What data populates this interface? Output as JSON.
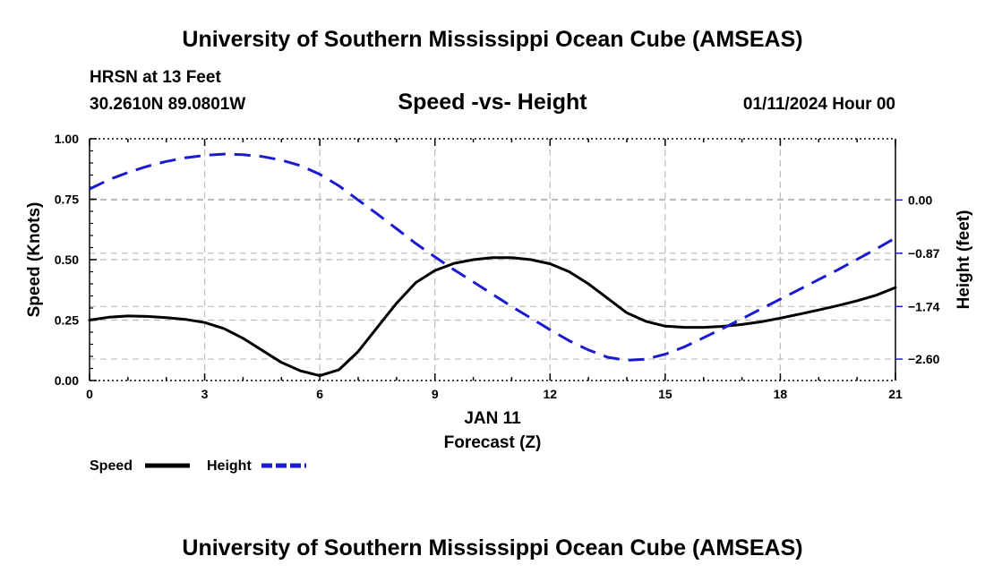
{
  "header": {
    "title": "University of Southern Mississippi Ocean Cube (AMSEAS)",
    "station": "HRSN at 13 Feet",
    "coords": "30.2610N  89.0801W",
    "chart_title": "Speed -vs- Height",
    "date": "01/11/2024 Hour 00"
  },
  "footer": {
    "title": "University of Southern Mississippi Ocean Cube (AMSEAS)"
  },
  "chart_data": {
    "type": "line",
    "title": "Speed -vs- Height",
    "xlabel_date": "JAN 11",
    "xlabel": "Forecast (Z)",
    "ylabel": "Speed (Knots)",
    "y2label": "Height (feet)",
    "xlim": [
      0,
      21
    ],
    "ylim": [
      0,
      1.0
    ],
    "y2lim": [
      -2.95,
      1.0
    ],
    "x_ticks": [
      0,
      3,
      6,
      9,
      12,
      15,
      18,
      21
    ],
    "x_tick_labels": [
      "0",
      "3",
      "6",
      "9",
      "12",
      "15",
      "18",
      "21"
    ],
    "y_ticks": [
      0,
      0.25,
      0.5,
      0.75,
      1.0
    ],
    "y_tick_labels": [
      "0.00",
      "0.25",
      "0.50",
      "0.75",
      "1.00"
    ],
    "y2_ticks": [
      0.0,
      -0.87,
      -1.74,
      -2.6
    ],
    "y2_tick_labels": [
      "0.00",
      "−0.87",
      "−1.74",
      "−2.60"
    ],
    "grid": true,
    "series": [
      {
        "name": "Speed",
        "axis": "left",
        "color": "#000000",
        "dash": "solid",
        "x": [
          0,
          0.5,
          1,
          1.5,
          2,
          2.5,
          3,
          3.5,
          4,
          4.5,
          5,
          5.5,
          6,
          6.5,
          7,
          7.5,
          8,
          8.5,
          9,
          9.5,
          10,
          10.5,
          11,
          11.5,
          12,
          12.5,
          13,
          13.5,
          14,
          14.5,
          15,
          15.5,
          16,
          16.5,
          17,
          17.5,
          18,
          18.5,
          19,
          19.5,
          20,
          20.5,
          21
        ],
        "values": [
          0.25,
          0.262,
          0.267,
          0.265,
          0.26,
          0.253,
          0.24,
          0.215,
          0.175,
          0.125,
          0.075,
          0.04,
          0.02,
          0.045,
          0.12,
          0.22,
          0.32,
          0.405,
          0.455,
          0.485,
          0.5,
          0.508,
          0.508,
          0.5,
          0.483,
          0.45,
          0.4,
          0.34,
          0.28,
          0.245,
          0.225,
          0.22,
          0.22,
          0.224,
          0.232,
          0.243,
          0.258,
          0.275,
          0.292,
          0.31,
          0.33,
          0.353,
          0.385
        ]
      },
      {
        "name": "Height",
        "axis": "right",
        "color": "#1a1ad0",
        "dash": "dashed",
        "x": [
          0,
          0.5,
          1,
          1.5,
          2,
          2.5,
          3,
          3.5,
          4,
          4.5,
          5,
          5.5,
          6,
          6.5,
          7,
          7.5,
          8,
          8.5,
          9,
          9.5,
          10,
          10.5,
          11,
          11.5,
          12,
          12.5,
          13,
          13.5,
          14,
          14.5,
          15,
          15.5,
          16,
          16.5,
          17,
          17.5,
          18,
          18.5,
          19,
          19.5,
          20,
          20.5,
          21
        ],
        "values": [
          0.18,
          0.33,
          0.45,
          0.55,
          0.63,
          0.69,
          0.73,
          0.75,
          0.74,
          0.71,
          0.65,
          0.56,
          0.42,
          0.23,
          0.0,
          -0.23,
          -0.47,
          -0.71,
          -0.93,
          -1.14,
          -1.34,
          -1.54,
          -1.74,
          -1.93,
          -2.12,
          -2.3,
          -2.45,
          -2.57,
          -2.62,
          -2.6,
          -2.52,
          -2.4,
          -2.25,
          -2.1,
          -1.94,
          -1.78,
          -1.62,
          -1.46,
          -1.3,
          -1.14,
          -0.97,
          -0.8,
          -0.62
        ]
      }
    ],
    "legend": [
      {
        "label": "Speed",
        "color": "#000000",
        "dash": "solid"
      },
      {
        "label": "Height",
        "color": "#1a1ad0",
        "dash": "dashed"
      }
    ],
    "legend_position": "bottom-left"
  }
}
